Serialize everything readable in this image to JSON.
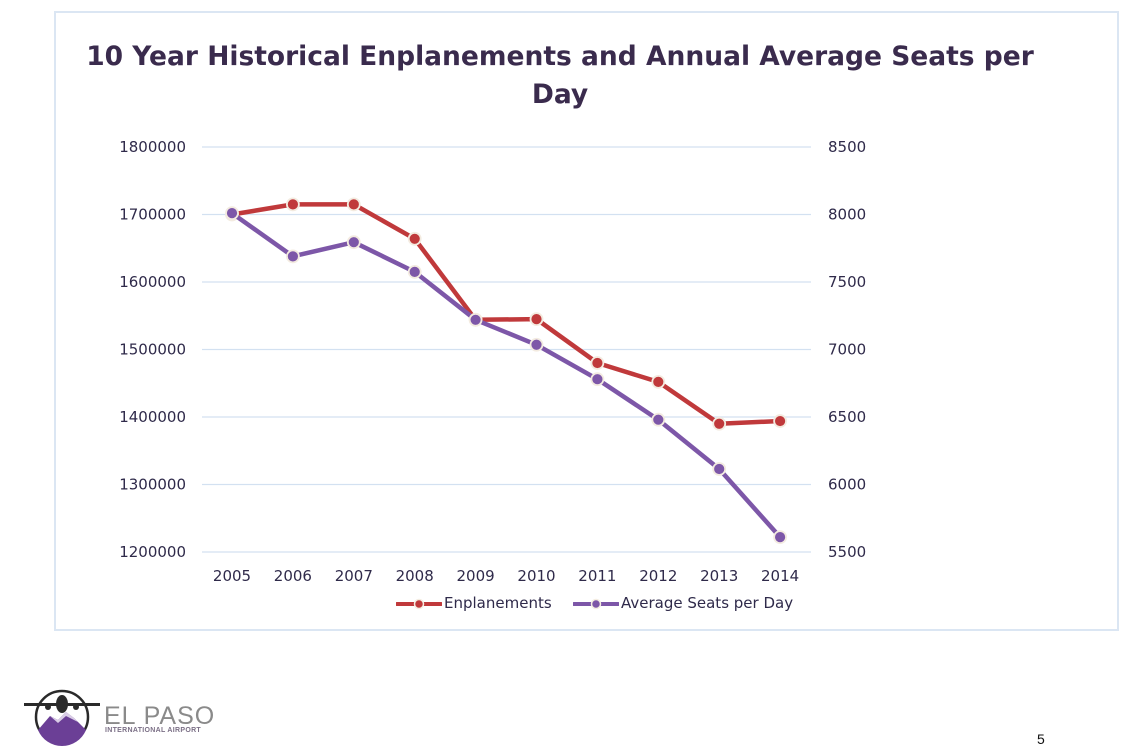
{
  "chart_data": {
    "type": "line",
    "title": "10 Year Historical Enplanements and Annual Average Seats per Day",
    "xlabel": "",
    "ylabel": "",
    "y2label": "",
    "categories": [
      "2005",
      "2006",
      "2007",
      "2008",
      "2009",
      "2010",
      "2011",
      "2012",
      "2013",
      "2014"
    ],
    "ylim": [
      1200000,
      1800000
    ],
    "yticks": [
      "1200000",
      "1300000",
      "1400000",
      "1500000",
      "1600000",
      "1700000",
      "1800000"
    ],
    "y2lim": [
      5500,
      8500
    ],
    "y2ticks": [
      "5500",
      "6000",
      "6500",
      "7000",
      "7500",
      "8000",
      "8500"
    ],
    "grid": true,
    "legend_position": "bottom",
    "series": [
      {
        "name": "Enplanements",
        "axis": "left",
        "color": "#c0393b",
        "values": [
          1700000,
          1715000,
          1715000,
          1664000,
          1544000,
          1545000,
          1480000,
          1452000,
          1390000,
          1394000
        ]
      },
      {
        "name": "Average Seats per Day",
        "axis": "right",
        "color": "#7d57a8",
        "values": [
          8010,
          7690,
          7795,
          7575,
          7220,
          7035,
          6780,
          6480,
          6115,
          5610
        ]
      }
    ]
  },
  "footer": {
    "logo_name": "EL PASO",
    "logo_subtitle": "INTERNATIONAL AIRPORT",
    "page_number": "5"
  }
}
